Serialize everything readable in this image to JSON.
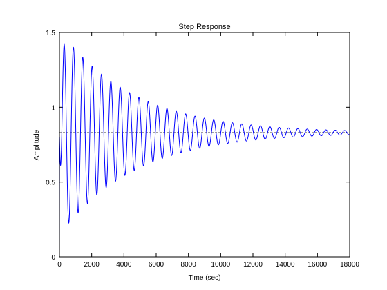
{
  "chart_data": {
    "type": "line",
    "title": "Step Response",
    "xlabel": "Time (sec)",
    "ylabel": "Amplitude",
    "xlim": [
      0,
      18000
    ],
    "ylim": [
      0,
      1.5
    ],
    "xticks": [
      0,
      2000,
      4000,
      6000,
      8000,
      10000,
      12000,
      14000,
      16000,
      18000
    ],
    "xtick_labels": [
      "0",
      "2000",
      "4000",
      "6000",
      "8000",
      "10000",
      "12000",
      "14000",
      "16000",
      "18000"
    ],
    "yticks": [
      0,
      0.5,
      1,
      1.5
    ],
    "ytick_labels": [
      "0",
      "0.5",
      "1",
      "1.5"
    ],
    "grid": false,
    "legend": "none",
    "colors": {
      "response": "#0000ff",
      "steady_state": "#000000",
      "axes": "#000000"
    },
    "series": [
      {
        "kind": "damped-oscillation",
        "steady_state": 0.83,
        "first_peak": {
          "x": 350,
          "y": 1.47
        },
        "period": 580,
        "decay_time_constant": 4600,
        "x_end": 18000
      }
    ],
    "reference_lines": [
      {
        "style": "dashed",
        "y": 0.83
      }
    ]
  }
}
